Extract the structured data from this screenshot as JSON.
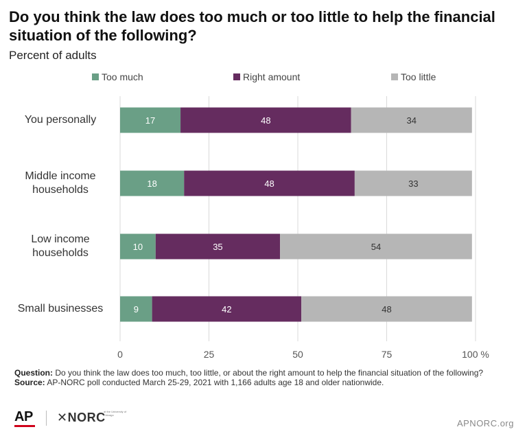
{
  "title": "Do you think the law does too much or too little to help the financial situation of the following?",
  "subtitle": "Percent of adults",
  "legend": [
    {
      "label": "Too much",
      "color": "#6a9f86"
    },
    {
      "label": "Right amount",
      "color": "#652c5f"
    },
    {
      "label": "Too little",
      "color": "#b6b6b6"
    }
  ],
  "chart_data": {
    "type": "bar",
    "orientation": "horizontal",
    "stacked": true,
    "categories": [
      "You personally",
      "Middle income households",
      "Low income households",
      "Small businesses"
    ],
    "category_lines": [
      [
        "You personally"
      ],
      [
        "Middle income",
        "households"
      ],
      [
        "Low income",
        "households"
      ],
      [
        "Small businesses"
      ]
    ],
    "series": [
      {
        "name": "Too much",
        "color": "#6a9f86",
        "label_color": "#ffffff",
        "values": [
          17,
          18,
          10,
          9
        ]
      },
      {
        "name": "Right amount",
        "color": "#652c5f",
        "label_color": "#ffffff",
        "values": [
          48,
          48,
          35,
          42
        ]
      },
      {
        "name": "Too little",
        "color": "#b6b6b6",
        "label_color": "#333333",
        "values": [
          34,
          33,
          54,
          48
        ]
      }
    ],
    "xlim": [
      0,
      100
    ],
    "xticks": [
      0,
      25,
      50,
      75,
      100
    ],
    "xtick_labels": [
      "0",
      "25",
      "50",
      "75",
      "100 %"
    ],
    "grid": "vertical",
    "legend_position": "top"
  },
  "footer": {
    "question_label": "Question:",
    "question": " Do you think the law does too much, too little, or about the right amount to help the financial situation of the following?",
    "source_label": "Source:",
    "source": " AP-NORC poll conducted March 25-29, 2021 with 1,166 adults age 18 and older nationwide."
  },
  "branding": {
    "ap": "AP",
    "norc": "✕NORC",
    "norc_sub": "at the University of Chicago",
    "site": "APNORC.org"
  }
}
